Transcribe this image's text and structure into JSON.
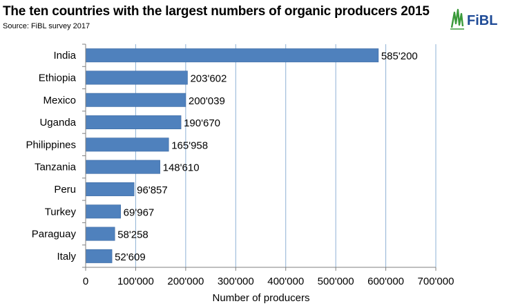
{
  "header": {
    "title": "The ten countries with the largest numbers of organic producers 2015",
    "source": "Source: FiBL survey 2017",
    "logo_text": "FiBL"
  },
  "colors": {
    "bar": "#4f81bd",
    "bar_edge": "#3c6aa3",
    "grid": "#8eb0d4",
    "axis": "#7f7f7f",
    "logo_green": "#3a9a3a"
  },
  "chart_data": {
    "type": "bar",
    "orientation": "horizontal",
    "categories": [
      "India",
      "Ethiopia",
      "Mexico",
      "Uganda",
      "Philippines",
      "Tanzania",
      "Peru",
      "Turkey",
      "Paraguay",
      "Italy"
    ],
    "values": [
      585200,
      203602,
      200039,
      190670,
      165958,
      148610,
      96857,
      69967,
      58258,
      52609
    ],
    "value_labels": [
      "585'200",
      "203'602",
      "200'039",
      "190'670",
      "165'958",
      "148'610",
      "96'857",
      "69'967",
      "58'258",
      "52'609"
    ],
    "xlim": [
      0,
      700000
    ],
    "xticks": [
      0,
      100000,
      200000,
      300000,
      400000,
      500000,
      600000,
      700000
    ],
    "xtick_labels": [
      "0",
      "100'000",
      "200'000",
      "300'000",
      "400'000",
      "500'000",
      "600'000",
      "700'000"
    ],
    "xlabel": "Number of producers",
    "ylabel": "",
    "grid": true,
    "legend": false
  }
}
